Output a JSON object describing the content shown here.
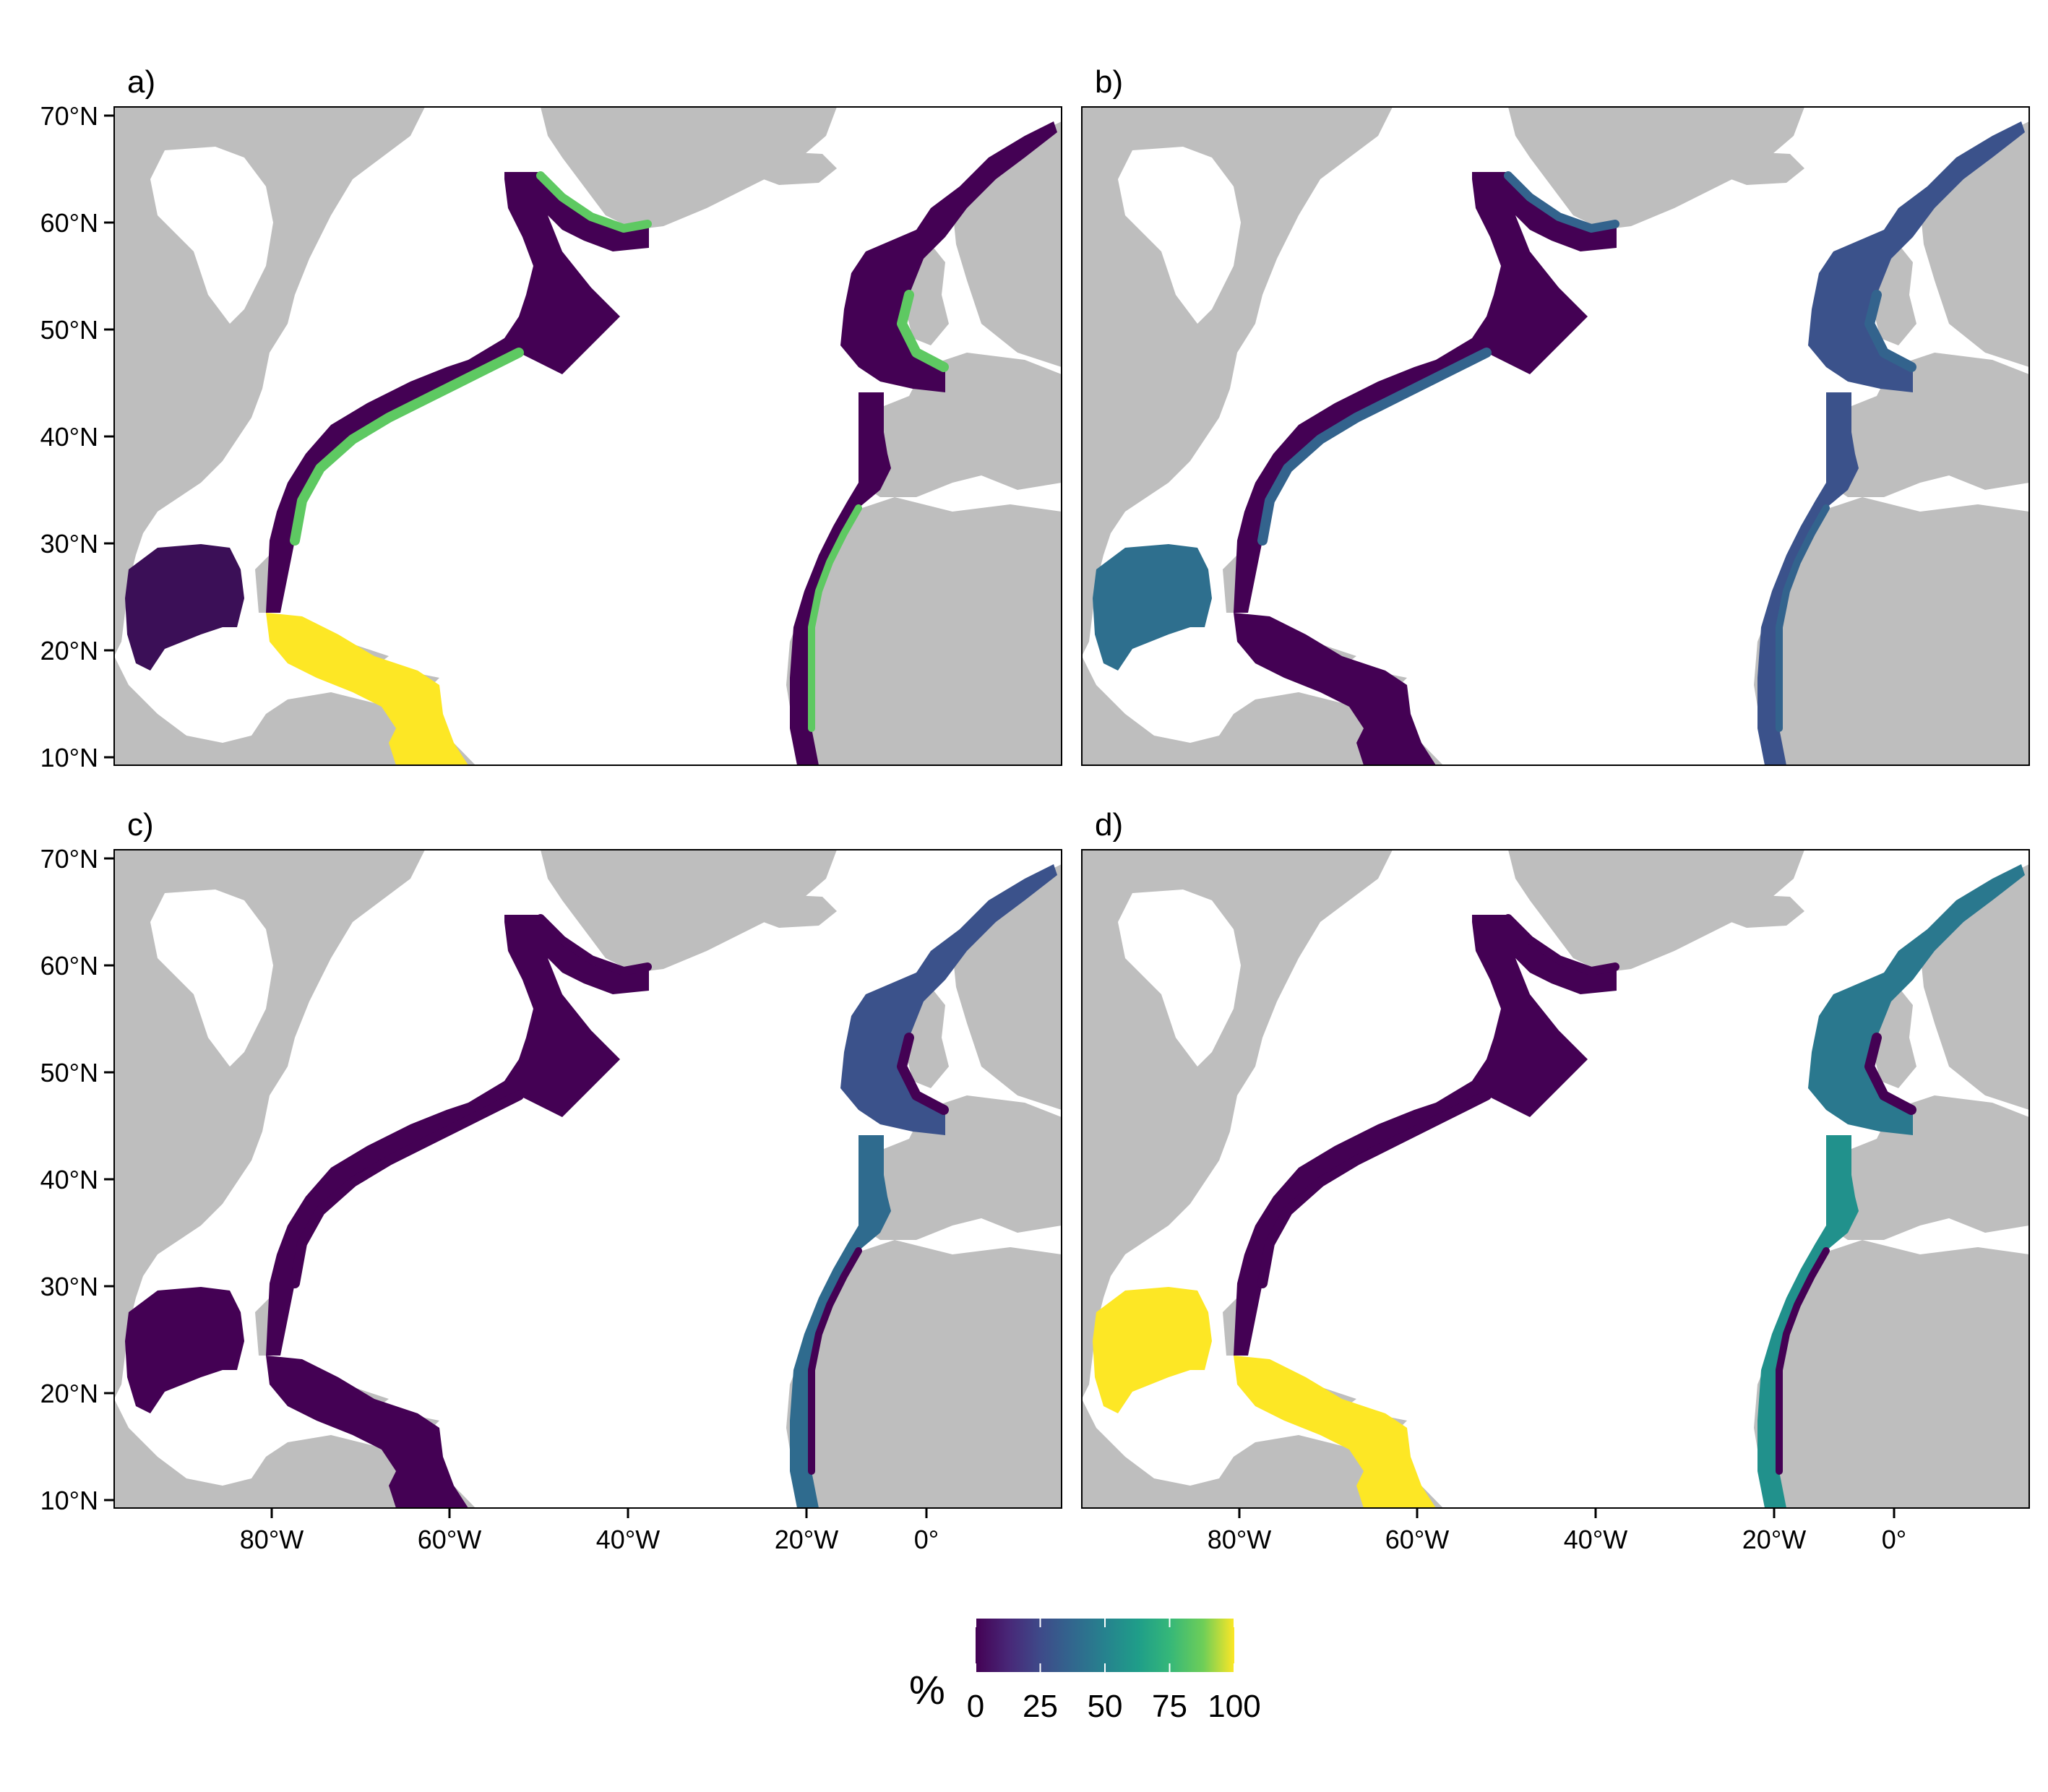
{
  "panels": [
    {
      "label": "a)",
      "fill": {
        "gom": "#3b0f57",
        "east_us": "#440154",
        "labrador": "#440154",
        "caribbean": "#fde725",
        "europe": "#440154",
        "africa": "#440154",
        "coast_edge": "#5ec962"
      }
    },
    {
      "label": "b)",
      "fill": {
        "gom": "#2e6f8e",
        "east_us": "#440154",
        "labrador": "#3b528b",
        "caribbean": "#440154",
        "europe": "#3b528b",
        "africa": "#3b528b",
        "coast_edge": "#33638d"
      }
    },
    {
      "label": "c)",
      "fill": {
        "gom": "#440154",
        "east_us": "#440154",
        "labrador": "#433e85",
        "caribbean": "#440154",
        "europe": "#3b528b",
        "africa": "#2f6b8e",
        "coast_edge": "#440154"
      }
    },
    {
      "label": "d)",
      "fill": {
        "gom": "#fde725",
        "east_us": "#440154",
        "labrador": "#25a584",
        "caribbean": "#fde725",
        "europe": "#2a788e",
        "africa": "#21918c",
        "coast_edge": "#440154"
      }
    }
  ],
  "axes": {
    "y_ticks": [
      "70°N",
      "60°N",
      "50°N",
      "40°N",
      "30°N",
      "20°N",
      "10°N"
    ],
    "x_ticks": [
      "80°W",
      "60°W",
      "40°W",
      "20°W",
      "0°"
    ]
  },
  "legend": {
    "title": "%",
    "ticks": [
      "0",
      "25",
      "50",
      "75",
      "100"
    ],
    "colormap": "viridis",
    "range": [
      0,
      100
    ]
  },
  "colors": {
    "land": "#bebebe",
    "water": "#ffffff",
    "frame": "#000000"
  }
}
